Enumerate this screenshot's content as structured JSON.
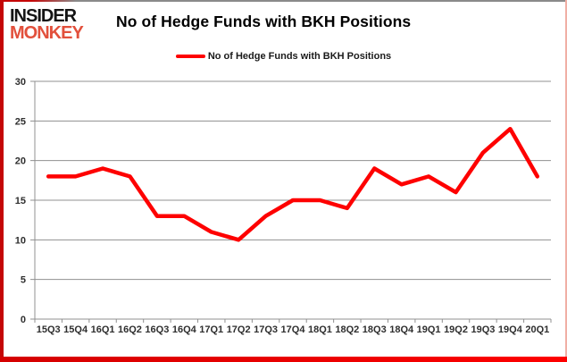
{
  "brand": {
    "line1": "INSIDER",
    "line2": "MONKEY",
    "line1_color": "#141414",
    "line2_color": "#e2503c"
  },
  "header": {
    "title": "No of Hedge Funds with BKH Positions"
  },
  "legend": {
    "label": "No of Hedge Funds with BKH Positions",
    "line_color": "#fe0000"
  },
  "chart_data": {
    "type": "line",
    "title": "No of Hedge Funds with BKH Positions",
    "categories": [
      "15Q3",
      "15Q4",
      "16Q1",
      "16Q2",
      "16Q3",
      "16Q4",
      "17Q1",
      "17Q2",
      "17Q3",
      "17Q4",
      "18Q1",
      "18Q2",
      "18Q3",
      "18Q4",
      "19Q1",
      "19Q2",
      "19Q3",
      "19Q4",
      "20Q1"
    ],
    "series": [
      {
        "name": "No of Hedge Funds with BKH Positions",
        "color": "#fe0000",
        "values": [
          18,
          18,
          19,
          18,
          13,
          13,
          11,
          10,
          13,
          15,
          15,
          14,
          19,
          17,
          18,
          16,
          21,
          24,
          18
        ]
      }
    ],
    "xlabel": "",
    "ylabel": "",
    "ylim": [
      0,
      30
    ],
    "ytick_step": 5,
    "yticks": [
      "0",
      "5",
      "10",
      "15",
      "20",
      "25",
      "30"
    ],
    "grid": true,
    "legend_position": "top",
    "gridline_color": "#909090",
    "axis_label_color": "#2e2e2e"
  },
  "frame": {
    "left_color": "#c40606",
    "bottom_color": "#e60000",
    "top_color": "#8a8a8a",
    "right_color": "#f0afa5"
  }
}
